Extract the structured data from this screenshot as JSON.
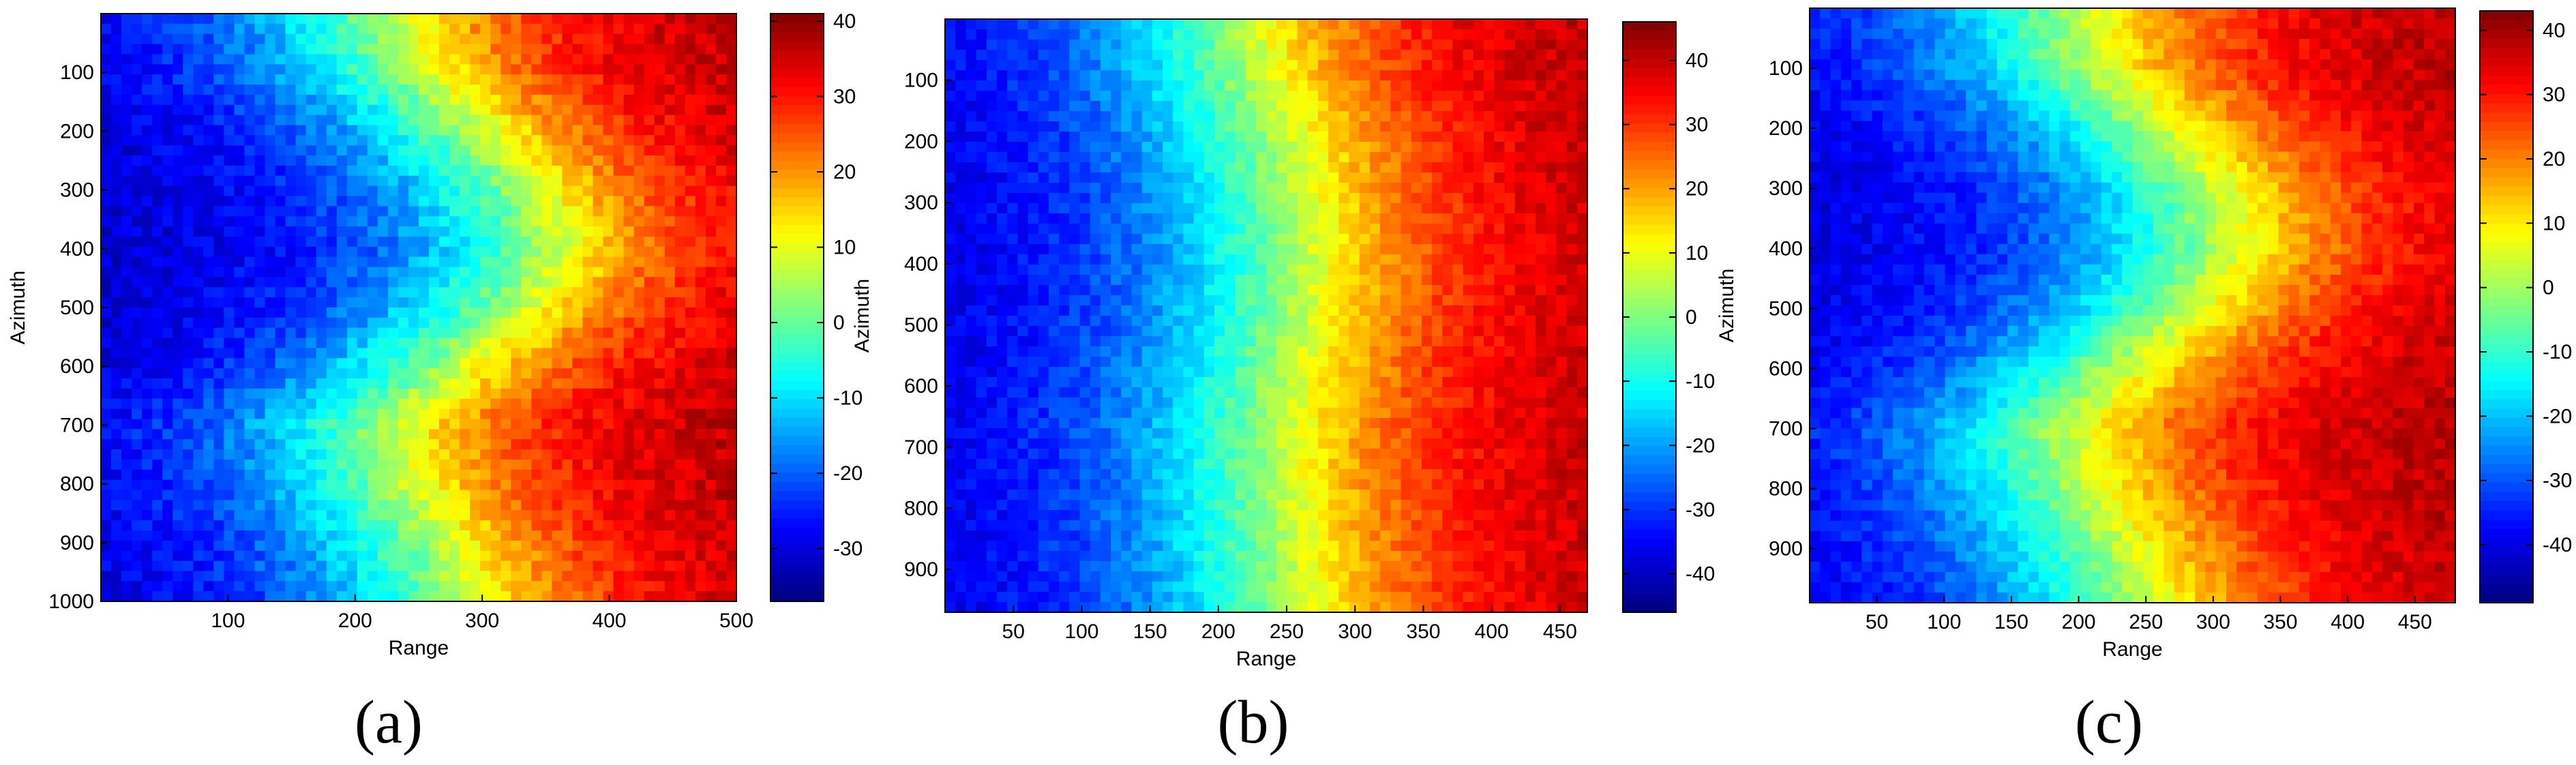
{
  "chart_data": [
    {
      "type": "heatmap",
      "panel_label": "a",
      "xlabel": "Range",
      "ylabel": "Azimuth",
      "xlim": [
        0,
        500
      ],
      "ylim": [
        1000,
        0
      ],
      "x_ticks": [
        100,
        200,
        300,
        400,
        500
      ],
      "y_ticks": [
        100,
        200,
        300,
        400,
        500,
        600,
        700,
        800,
        900,
        1000
      ],
      "colorbar": {
        "colormap": "jet",
        "range": [
          -37,
          41
        ],
        "ticks": [
          40,
          30,
          20,
          10,
          0,
          -10,
          -20,
          -30
        ]
      },
      "field_description": "phase increases from west (about -30) to east (about +38); a low-value bay near azimuth 300-450, range 100-250; green/yellow front wraps west around azimuth 650-950",
      "front_profile": {
        "azimuth": [
          0,
          100,
          200,
          300,
          400,
          500,
          600,
          700,
          800,
          900,
          1000
        ],
        "zero_contour_range": [
          200,
          220,
          270,
          310,
          330,
          300,
          250,
          200,
          210,
          240,
          260
        ]
      }
    },
    {
      "type": "heatmap",
      "panel_label": "b",
      "xlabel": "Range",
      "ylabel": "Azimuth",
      "xlim": [
        0,
        470
      ],
      "ylim": [
        970,
        0
      ],
      "x_ticks": [
        50,
        100,
        150,
        200,
        250,
        300,
        350,
        400,
        450
      ],
      "y_ticks": [
        100,
        200,
        300,
        400,
        500,
        600,
        700,
        800,
        900
      ],
      "colorbar": {
        "colormap": "jet",
        "range": [
          -46,
          46
        ],
        "ticks": [
          40,
          30,
          20,
          10,
          0,
          -10,
          -20,
          -30,
          -40
        ]
      },
      "field_description": "phase increases from west (about -40) to east (about +40) with a roughly north-south front near range 260-300",
      "front_profile": {
        "azimuth": [
          0,
          100,
          200,
          300,
          400,
          500,
          600,
          700,
          800,
          900,
          970
        ],
        "zero_contour_range": [
          200,
          210,
          230,
          240,
          245,
          240,
          230,
          225,
          230,
          235,
          240
        ]
      }
    },
    {
      "type": "heatmap",
      "panel_label": "c",
      "xlabel": "Range",
      "ylabel": "Azimuth",
      "xlim": [
        0,
        480
      ],
      "ylim": [
        990,
        0
      ],
      "x_ticks": [
        50,
        100,
        150,
        200,
        250,
        300,
        350,
        400,
        450
      ],
      "y_ticks": [
        100,
        200,
        300,
        400,
        500,
        600,
        700,
        800,
        900
      ],
      "colorbar": {
        "colormap": "jet",
        "range": [
          -49,
          43
        ],
        "ticks": [
          40,
          30,
          20,
          10,
          0,
          -10,
          -20,
          -30,
          -40
        ]
      },
      "field_description": "phase increases from west (about -40) to east (about +42); low-value bay near azimuth 300-450, range 150-250; front wraps west around azimuth 650-900",
      "front_profile": {
        "azimuth": [
          0,
          100,
          200,
          300,
          400,
          500,
          600,
          700,
          800,
          900,
          990
        ],
        "zero_contour_range": [
          190,
          200,
          250,
          290,
          300,
          270,
          220,
          180,
          195,
          220,
          240
        ]
      }
    }
  ],
  "captions": [
    "(a)",
    "(b)",
    "(c)"
  ]
}
